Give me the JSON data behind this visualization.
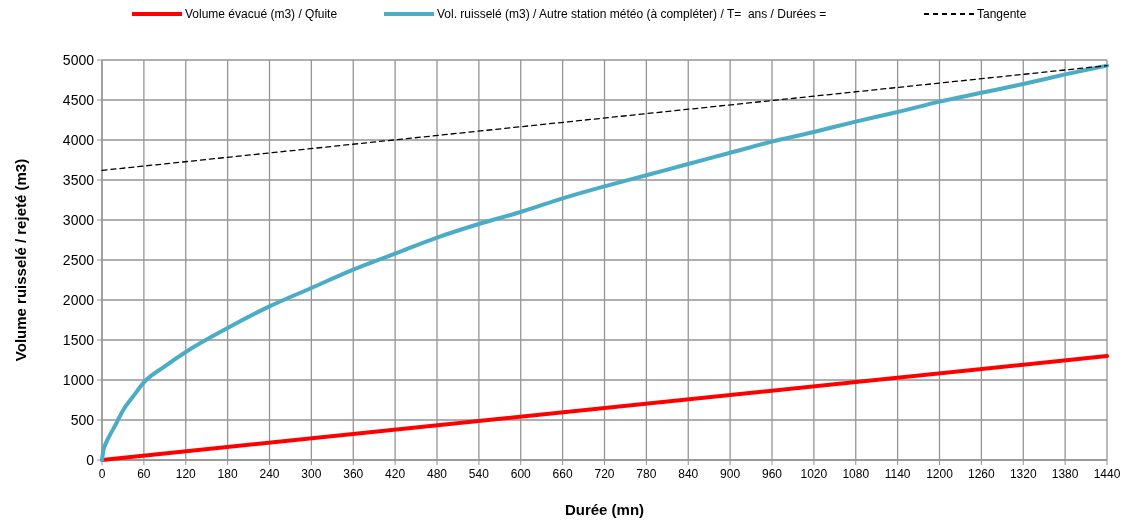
{
  "chart_data": {
    "type": "line",
    "xlabel": "Durée (mn)",
    "ylabel": "Volume ruisselé / rejeté (m3)",
    "xlim": [
      0,
      1440
    ],
    "ylim": [
      0,
      5000
    ],
    "xticks": [
      0,
      60,
      120,
      180,
      240,
      300,
      360,
      420,
      480,
      540,
      600,
      660,
      720,
      780,
      840,
      900,
      960,
      1020,
      1080,
      1140,
      1200,
      1260,
      1320,
      1380,
      1440
    ],
    "yticks": [
      0,
      500,
      1000,
      1500,
      2000,
      2500,
      3000,
      3500,
      4000,
      4500,
      5000
    ],
    "grid": true,
    "legend": "top",
    "marker": "none",
    "series": [
      {
        "name": "Volume évacué (m3) / Qfuite",
        "color": "#ff0000",
        "line_style": "solid",
        "x": [
          0,
          1440
        ],
        "values": [
          0,
          1300
        ]
      },
      {
        "name": "Vol. ruisselé (m3) / Autre station météo (à compléter) / T=  ans / Durées =",
        "color": "#4bacc6",
        "line_style": "solid",
        "x": [
          0,
          2,
          5,
          10,
          20,
          30,
          45,
          60,
          90,
          120,
          180,
          240,
          300,
          360,
          420,
          480,
          540,
          600,
          660,
          720,
          780,
          840,
          900,
          960,
          1020,
          1080,
          1140,
          1200,
          1260,
          1320,
          1380,
          1440
        ],
        "values": [
          0,
          120,
          200,
          290,
          450,
          620,
          800,
          970,
          1170,
          1350,
          1650,
          1920,
          2150,
          2380,
          2580,
          2780,
          2950,
          3100,
          3270,
          3420,
          3560,
          3700,
          3840,
          3980,
          4100,
          4230,
          4350,
          4480,
          4590,
          4700,
          4820,
          4930
        ]
      },
      {
        "name": "Tangente",
        "color": "#000000",
        "line_style": "dashed",
        "x": [
          0,
          1440
        ],
        "values": [
          3620,
          4930
        ]
      }
    ]
  }
}
